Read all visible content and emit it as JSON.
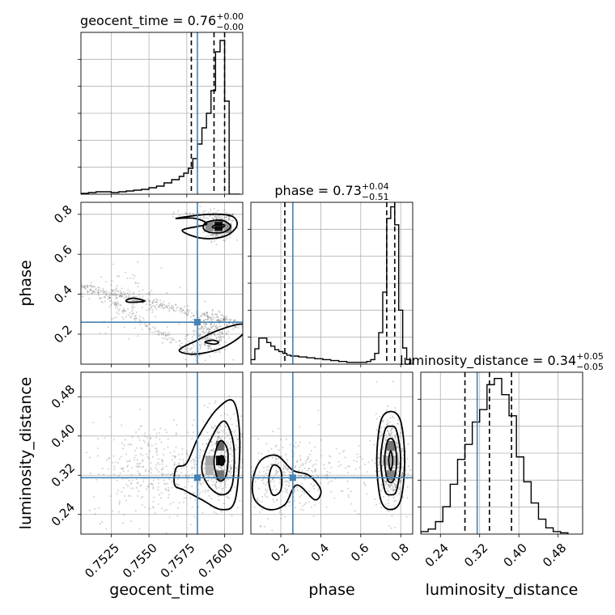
{
  "chart_data": {
    "type": "corner",
    "truth_color": "#4682b4",
    "line_color": "#000000",
    "grid": true,
    "parameters": [
      {
        "key": "geocent_time",
        "label": "geocent_time",
        "range": [
          0.7505,
          0.7612
        ],
        "ticks": [
          0.7525,
          0.755,
          0.7575,
          0.76
        ],
        "tick_labels": [
          "0.7525",
          "0.7550",
          "0.7575",
          "0.7600"
        ],
        "truth": 0.7582,
        "quantiles": [
          0.7578,
          0.7593,
          0.76
        ]
      },
      {
        "key": "phase",
        "label": "phase",
        "range": [
          0.05,
          0.86
        ],
        "ticks": [
          0.2,
          0.4,
          0.6,
          0.8
        ],
        "tick_labels": [
          "0.2",
          "0.4",
          "0.6",
          "0.8"
        ],
        "truth": 0.26,
        "quantiles": [
          0.22,
          0.73,
          0.77
        ]
      },
      {
        "key": "luminosity_distance",
        "label": "luminosity_distance",
        "range": [
          0.2,
          0.53
        ],
        "ticks": [
          0.24,
          0.32,
          0.4,
          0.48
        ],
        "tick_labels": [
          "0.24",
          "0.32",
          "0.40",
          "0.48"
        ],
        "truth": 0.315,
        "quantiles": [
          0.29,
          0.34,
          0.385
        ]
      }
    ],
    "titles": [
      {
        "text": "geocent_time = 0.76",
        "sup": "+0.00",
        "sub": "−0.00"
      },
      {
        "text": "phase = 0.73",
        "sup": "+0.04",
        "sub": "−0.51"
      },
      {
        "text": "luminosity_distance = 0.34",
        "sup": "+0.05",
        "sub": "−0.05"
      }
    ],
    "histograms": [
      {
        "param": "geocent_time",
        "edges": [
          0.7505,
          0.751,
          0.7515,
          0.752,
          0.7525,
          0.753,
          0.7535,
          0.754,
          0.7545,
          0.755,
          0.7555,
          0.756,
          0.7565,
          0.757,
          0.7573,
          0.7576,
          0.7579,
          0.7582,
          0.7585,
          0.7588,
          0.7591,
          0.7594,
          0.7597,
          0.76,
          0.7603,
          0.7606,
          0.761
        ],
        "counts": [
          1,
          2,
          3,
          3,
          2,
          3,
          4,
          5,
          6,
          8,
          10,
          14,
          18,
          22,
          26,
          32,
          44,
          62,
          82,
          100,
          128,
          176,
          190,
          115,
          0,
          0
        ],
        "ymax": 200
      },
      {
        "param": "phase",
        "edges": [
          0.05,
          0.07,
          0.09,
          0.11,
          0.13,
          0.15,
          0.17,
          0.19,
          0.21,
          0.23,
          0.25,
          0.27,
          0.29,
          0.31,
          0.33,
          0.35,
          0.37,
          0.39,
          0.41,
          0.43,
          0.45,
          0.47,
          0.49,
          0.51,
          0.53,
          0.55,
          0.57,
          0.59,
          0.61,
          0.63,
          0.65,
          0.67,
          0.69,
          0.71,
          0.73,
          0.75,
          0.77,
          0.79,
          0.81,
          0.83,
          0.85
        ],
        "counts": [
          5,
          17,
          29,
          29,
          24,
          20,
          16,
          14,
          12,
          10,
          9,
          9,
          8,
          8,
          7,
          7,
          6,
          6,
          5,
          5,
          4,
          4,
          3,
          3,
          2,
          2,
          2,
          2,
          2,
          3,
          5,
          12,
          35,
          80,
          162,
          175,
          155,
          60,
          18,
          5
        ],
        "ymax": 180
      },
      {
        "param": "luminosity_distance",
        "edges": [
          0.2,
          0.215,
          0.23,
          0.245,
          0.26,
          0.275,
          0.29,
          0.305,
          0.32,
          0.335,
          0.35,
          0.365,
          0.38,
          0.395,
          0.41,
          0.425,
          0.44,
          0.455,
          0.47,
          0.485,
          0.5
        ],
        "counts": [
          2,
          4,
          10,
          22,
          40,
          60,
          72,
          90,
          100,
          120,
          125,
          112,
          95,
          62,
          42,
          25,
          12,
          5,
          2,
          1
        ],
        "ymax": 130
      }
    ],
    "scatter_density": [
      {
        "x": "geocent_time",
        "y": "phase",
        "clusters": [
          {
            "cx": 0.7596,
            "cy": 0.74,
            "sx": 0.00045,
            "sy": 0.035,
            "n": 260
          },
          {
            "cx": 0.759,
            "cy": 0.2,
            "sx": 0.0007,
            "sy": 0.05,
            "n": 230
          },
          {
            "cx": 0.7536,
            "cy": 0.37,
            "sx": 0.0011,
            "sy": 0.08,
            "n": 90
          }
        ],
        "curves": [
          {
            "x0": 0.7506,
            "y0": 0.44,
            "x1": 0.761,
            "y1": 0.25,
            "n": 320
          },
          {
            "x0": 0.7506,
            "y0": 0.44,
            "x1": 0.7585,
            "y1": 0.08,
            "n": 160
          },
          {
            "x0": 0.7565,
            "y0": 0.81,
            "x1": 0.7605,
            "y1": 0.79,
            "n": 60
          }
        ],
        "pixels": [
          {
            "x": 0.7596,
            "y": 0.74,
            "v": 0.9
          },
          {
            "x": 0.759,
            "y": 0.74,
            "v": 0.45
          },
          {
            "x": 0.7602,
            "y": 0.73,
            "v": 0.4
          }
        ],
        "contours": [
          [
            [
              0.7568,
              0.78
            ],
            [
              0.759,
              0.8
            ],
            [
              0.7605,
              0.79
            ],
            [
              0.7608,
              0.74
            ],
            [
              0.76,
              0.69
            ],
            [
              0.7585,
              0.68
            ],
            [
              0.7572,
              0.72
            ],
            [
              0.7588,
              0.75
            ],
            [
              0.758,
              0.78
            ]
          ],
          [
            [
              0.7588,
              0.76
            ],
            [
              0.7598,
              0.77
            ],
            [
              0.7604,
              0.74
            ],
            [
              0.7599,
              0.71
            ],
            [
              0.759,
              0.71
            ],
            [
              0.7586,
              0.73
            ]
          ],
          [
            [
              0.7595,
              0.75
            ],
            [
              0.76,
              0.745
            ],
            [
              0.7597,
              0.73
            ],
            [
              0.7592,
              0.735
            ]
          ],
          [
            [
              0.757,
              0.12
            ],
            [
              0.7582,
              0.17
            ],
            [
              0.7596,
              0.22
            ],
            [
              0.7612,
              0.25
            ],
            [
              0.7612,
              0.2
            ],
            [
              0.7598,
              0.13
            ],
            [
              0.758,
              0.1
            ]
          ],
          [
            [
              0.7587,
              0.16
            ],
            [
              0.7592,
              0.17
            ],
            [
              0.7596,
              0.16
            ],
            [
              0.7593,
              0.15
            ]
          ],
          [
            [
              0.7535,
              0.37
            ],
            [
              0.754,
              0.38
            ],
            [
              0.7547,
              0.365
            ],
            [
              0.7537,
              0.36
            ]
          ]
        ]
      },
      {
        "x": "geocent_time",
        "y": "luminosity_distance",
        "clusters": [
          {
            "cx": 0.7597,
            "cy": 0.35,
            "sx": 0.0007,
            "sy": 0.045,
            "n": 420
          },
          {
            "cx": 0.7555,
            "cy": 0.33,
            "sx": 0.0022,
            "sy": 0.05,
            "n": 380
          }
        ],
        "curves": [],
        "pixels": [
          {
            "x": 0.7597,
            "y": 0.35,
            "v": 0.95
          },
          {
            "x": 0.7597,
            "y": 0.38,
            "v": 0.6
          },
          {
            "x": 0.7597,
            "y": 0.32,
            "v": 0.55
          },
          {
            "x": 0.759,
            "y": 0.35,
            "v": 0.35
          },
          {
            "x": 0.759,
            "y": 0.33,
            "v": 0.3
          }
        ],
        "contours": [
          [
            [
              0.7567,
              0.3
            ],
            [
              0.7568,
              0.335
            ],
            [
              0.7575,
              0.345
            ],
            [
              0.7583,
              0.4
            ],
            [
              0.7595,
              0.455
            ],
            [
              0.7606,
              0.47
            ],
            [
              0.761,
              0.39
            ],
            [
              0.7607,
              0.27
            ],
            [
              0.7598,
              0.25
            ],
            [
              0.7585,
              0.27
            ],
            [
              0.7573,
              0.29
            ]
          ],
          [
            [
              0.7585,
              0.34
            ],
            [
              0.7592,
              0.4
            ],
            [
              0.76,
              0.43
            ],
            [
              0.7606,
              0.38
            ],
            [
              0.7605,
              0.3
            ],
            [
              0.7598,
              0.28
            ],
            [
              0.7589,
              0.3
            ]
          ],
          [
            [
              0.7593,
              0.35
            ],
            [
              0.7597,
              0.39
            ],
            [
              0.7602,
              0.37
            ],
            [
              0.7601,
              0.32
            ],
            [
              0.7596,
              0.31
            ]
          ],
          [
            [
              0.7596,
              0.35
            ],
            [
              0.7598,
              0.36
            ],
            [
              0.76,
              0.35
            ],
            [
              0.7598,
              0.34
            ]
          ]
        ]
      },
      {
        "x": "phase",
        "y": "luminosity_distance",
        "clusters": [
          {
            "cx": 0.75,
            "cy": 0.35,
            "sx": 0.035,
            "sy": 0.045,
            "n": 520
          },
          {
            "cx": 0.22,
            "cy": 0.31,
            "sx": 0.09,
            "sy": 0.04,
            "n": 260
          },
          {
            "cx": 0.45,
            "cy": 0.32,
            "sx": 0.15,
            "sy": 0.04,
            "n": 110
          }
        ],
        "curves": [],
        "pixels": [
          {
            "x": 0.75,
            "y": 0.35,
            "v": 0.95
          },
          {
            "x": 0.75,
            "y": 0.38,
            "v": 0.55
          },
          {
            "x": 0.75,
            "y": 0.32,
            "v": 0.5
          },
          {
            "x": 0.73,
            "y": 0.35,
            "v": 0.3
          },
          {
            "x": 0.77,
            "y": 0.35,
            "v": 0.3
          }
        ],
        "contours": [
          [
            [
              0.68,
              0.35
            ],
            [
              0.7,
              0.43
            ],
            [
              0.75,
              0.45
            ],
            [
              0.8,
              0.43
            ],
            [
              0.82,
              0.35
            ],
            [
              0.8,
              0.27
            ],
            [
              0.75,
              0.25
            ],
            [
              0.7,
              0.27
            ]
          ],
          [
            [
              0.7,
              0.35
            ],
            [
              0.72,
              0.41
            ],
            [
              0.75,
              0.42
            ],
            [
              0.78,
              0.41
            ],
            [
              0.8,
              0.35
            ],
            [
              0.78,
              0.29
            ],
            [
              0.75,
              0.28
            ],
            [
              0.72,
              0.29
            ]
          ],
          [
            [
              0.72,
              0.35
            ],
            [
              0.735,
              0.39
            ],
            [
              0.765,
              0.39
            ],
            [
              0.78,
              0.35
            ],
            [
              0.765,
              0.31
            ],
            [
              0.735,
              0.31
            ]
          ],
          [
            [
              0.74,
              0.35
            ],
            [
              0.75,
              0.37
            ],
            [
              0.76,
              0.35
            ],
            [
              0.75,
              0.33
            ]
          ],
          [
            [
              0.06,
              0.31
            ],
            [
              0.1,
              0.35
            ],
            [
              0.18,
              0.36
            ],
            [
              0.26,
              0.33
            ],
            [
              0.34,
              0.32
            ],
            [
              0.4,
              0.29
            ],
            [
              0.37,
              0.27
            ],
            [
              0.28,
              0.3
            ],
            [
              0.22,
              0.26
            ],
            [
              0.14,
              0.25
            ],
            [
              0.07,
              0.27
            ]
          ],
          [
            [
              0.14,
              0.31
            ],
            [
              0.16,
              0.34
            ],
            [
              0.2,
              0.33
            ],
            [
              0.2,
              0.29
            ],
            [
              0.16,
              0.28
            ]
          ]
        ]
      }
    ]
  }
}
